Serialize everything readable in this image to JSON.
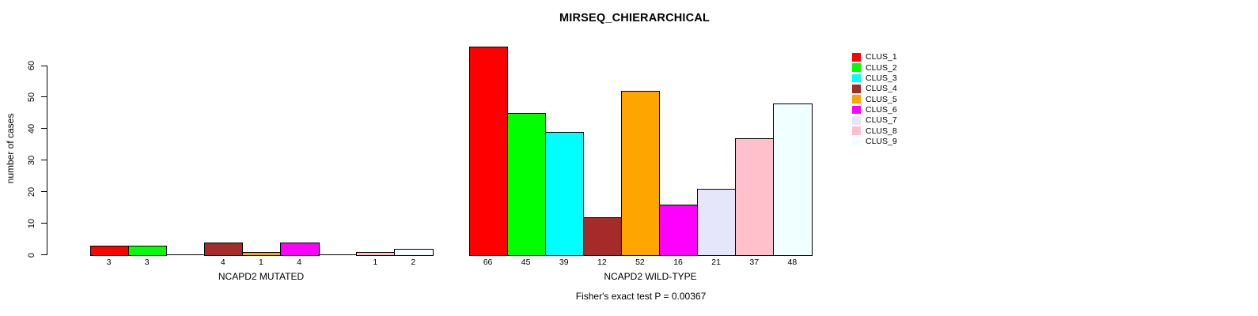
{
  "chart_data": {
    "type": "bar",
    "title": "MIRSEQ_CHIERARCHICAL",
    "ylabel": "number of cases",
    "xlabel_groups": [
      "NCAPD2 MUTATED",
      "NCAPD2 WILD-TYPE"
    ],
    "ylim": [
      0,
      60
    ],
    "yticks": [
      0,
      10,
      20,
      30,
      40,
      50,
      60
    ],
    "grid": false,
    "legend_position": "right",
    "annotation": "Fisher's exact test P = 0.00367",
    "series": [
      {
        "name": "CLUS_1",
        "color": "#FF0000",
        "values": [
          3,
          66
        ]
      },
      {
        "name": "CLUS_2",
        "color": "#00FF00",
        "values": [
          3,
          45
        ]
      },
      {
        "name": "CLUS_3",
        "color": "#00FFFF",
        "values": [
          0,
          39
        ]
      },
      {
        "name": "CLUS_4",
        "color": "#A52A2A",
        "values": [
          4,
          12
        ]
      },
      {
        "name": "CLUS_5",
        "color": "#FFA500",
        "values": [
          1,
          52
        ]
      },
      {
        "name": "CLUS_6",
        "color": "#FF00FF",
        "values": [
          4,
          16
        ]
      },
      {
        "name": "CLUS_7",
        "color": "#E6E6FA",
        "values": [
          0,
          21
        ]
      },
      {
        "name": "CLUS_8",
        "color": "#FFC0CB",
        "values": [
          1,
          37
        ]
      },
      {
        "name": "CLUS_9",
        "color": "#F0FFFF",
        "values": [
          2,
          48
        ]
      }
    ],
    "bar_value_labels": {
      "show": true,
      "hide_for_zero": true
    }
  }
}
